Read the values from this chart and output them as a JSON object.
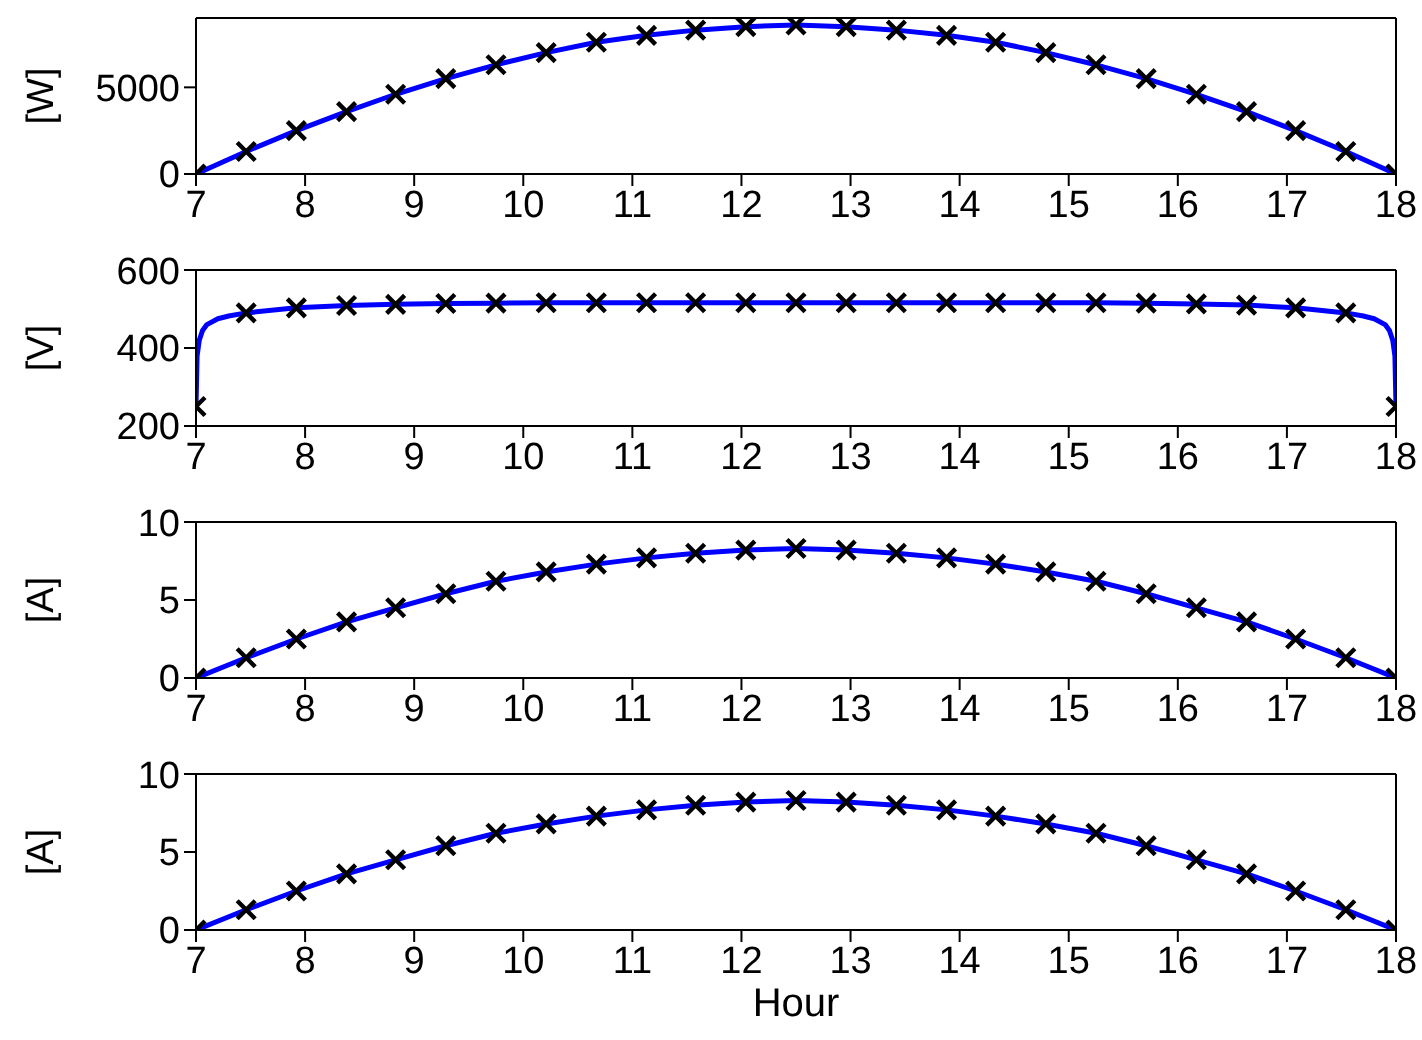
{
  "chart_data": [
    {
      "type": "line",
      "ylabel": "[W]",
      "x": [
        7,
        7.46,
        7.92,
        8.38,
        8.83,
        9.29,
        9.75,
        10.21,
        10.67,
        11.13,
        11.58,
        12.04,
        12.5,
        12.96,
        13.42,
        13.88,
        14.33,
        14.79,
        15.25,
        15.71,
        16.17,
        16.63,
        17.08,
        17.54,
        18
      ],
      "xlim": [
        7,
        18
      ],
      "xticks": [
        7,
        8,
        9,
        10,
        11,
        12,
        13,
        14,
        15,
        16,
        17,
        18
      ],
      "ylim": [
        0,
        9000
      ],
      "yticks": [
        0,
        5000
      ],
      "series": [
        {
          "color": "#0000ff",
          "marker": "none",
          "values": [
            0,
            1300,
            2500,
            3600,
            4600,
            5500,
            6300,
            7000,
            7600,
            8000,
            8300,
            8500,
            8600,
            8500,
            8300,
            8000,
            7600,
            7000,
            6300,
            5500,
            4600,
            3600,
            2500,
            1300,
            0
          ]
        },
        {
          "type": "scatter",
          "color": "#000000",
          "marker": "cross",
          "values": [
            0,
            1300,
            2500,
            3600,
            4600,
            5500,
            6300,
            7000,
            7600,
            8000,
            8300,
            8500,
            8600,
            8500,
            8300,
            8000,
            7600,
            7000,
            6300,
            5500,
            4600,
            3600,
            2500,
            1300,
            0
          ]
        }
      ]
    },
    {
      "type": "line",
      "ylabel": "[V]",
      "x": [
        7,
        7.46,
        7.92,
        8.38,
        8.83,
        9.29,
        9.75,
        10.21,
        10.67,
        11.13,
        11.58,
        12.04,
        12.5,
        12.96,
        13.42,
        13.88,
        14.33,
        14.79,
        15.25,
        15.71,
        16.17,
        16.63,
        17.08,
        17.54,
        18
      ],
      "xlim": [
        7,
        18
      ],
      "xticks": [
        7,
        8,
        9,
        10,
        11,
        12,
        13,
        14,
        15,
        16,
        17,
        18
      ],
      "ylim": [
        200,
        600
      ],
      "yticks": [
        200,
        400,
        600
      ],
      "series": [
        {
          "color": "#0000ff",
          "marker": "none",
          "x": [
            7,
            7.01,
            7.03,
            7.06,
            7.1,
            7.2,
            7.3,
            7.46,
            7.92,
            8.38,
            8.83,
            9.29,
            9.75,
            10.21,
            10.67,
            11.13,
            11.58,
            12.04,
            12.5,
            12.96,
            13.42,
            13.88,
            14.33,
            14.79,
            15.25,
            15.71,
            16.17,
            16.63,
            17.08,
            17.54,
            17.7,
            17.8,
            17.9,
            17.94,
            17.97,
            17.99,
            18
          ],
          "values": [
            250,
            380,
            420,
            445,
            460,
            475,
            482,
            490,
            503,
            509,
            512,
            514,
            515,
            516,
            516,
            516,
            516,
            516,
            516,
            516,
            516,
            516,
            516,
            516,
            516,
            515,
            513,
            510,
            503,
            490,
            482,
            475,
            460,
            445,
            420,
            380,
            250
          ]
        },
        {
          "type": "scatter",
          "color": "#000000",
          "marker": "cross",
          "values": [
            250,
            490,
            503,
            509,
            512,
            514,
            515,
            516,
            516,
            516,
            516,
            516,
            516,
            516,
            516,
            516,
            516,
            516,
            516,
            515,
            513,
            510,
            503,
            490,
            250
          ]
        }
      ]
    },
    {
      "type": "line",
      "ylabel": "[A]",
      "x": [
        7,
        7.46,
        7.92,
        8.38,
        8.83,
        9.29,
        9.75,
        10.21,
        10.67,
        11.13,
        11.58,
        12.04,
        12.5,
        12.96,
        13.42,
        13.88,
        14.33,
        14.79,
        15.25,
        15.71,
        16.17,
        16.63,
        17.08,
        17.54,
        18
      ],
      "xlim": [
        7,
        18
      ],
      "xticks": [
        7,
        8,
        9,
        10,
        11,
        12,
        13,
        14,
        15,
        16,
        17,
        18
      ],
      "ylim": [
        0,
        10
      ],
      "yticks": [
        0,
        5,
        10
      ],
      "series": [
        {
          "color": "#0000ff",
          "marker": "none",
          "values": [
            0,
            1.3,
            2.5,
            3.6,
            4.5,
            5.4,
            6.2,
            6.8,
            7.3,
            7.7,
            8.0,
            8.2,
            8.3,
            8.2,
            8.0,
            7.7,
            7.3,
            6.8,
            6.2,
            5.4,
            4.5,
            3.6,
            2.5,
            1.3,
            0
          ]
        },
        {
          "type": "scatter",
          "color": "#000000",
          "marker": "cross",
          "values": [
            0,
            1.3,
            2.5,
            3.6,
            4.5,
            5.4,
            6.2,
            6.8,
            7.3,
            7.7,
            8.0,
            8.2,
            8.3,
            8.2,
            8.0,
            7.7,
            7.3,
            6.8,
            6.2,
            5.4,
            4.5,
            3.6,
            2.5,
            1.3,
            0
          ]
        }
      ]
    },
    {
      "type": "line",
      "ylabel": "[A]",
      "xlabel": "Hour",
      "x": [
        7,
        7.46,
        7.92,
        8.38,
        8.83,
        9.29,
        9.75,
        10.21,
        10.67,
        11.13,
        11.58,
        12.04,
        12.5,
        12.96,
        13.42,
        13.88,
        14.33,
        14.79,
        15.25,
        15.71,
        16.17,
        16.63,
        17.08,
        17.54,
        18
      ],
      "xlim": [
        7,
        18
      ],
      "xticks": [
        7,
        8,
        9,
        10,
        11,
        12,
        13,
        14,
        15,
        16,
        17,
        18
      ],
      "ylim": [
        0,
        10
      ],
      "yticks": [
        0,
        5,
        10
      ],
      "series": [
        {
          "color": "#0000ff",
          "marker": "none",
          "values": [
            0,
            1.3,
            2.5,
            3.6,
            4.5,
            5.4,
            6.2,
            6.8,
            7.3,
            7.7,
            8.0,
            8.2,
            8.3,
            8.2,
            8.0,
            7.7,
            7.3,
            6.8,
            6.2,
            5.4,
            4.5,
            3.6,
            2.5,
            1.3,
            0
          ]
        },
        {
          "type": "scatter",
          "color": "#000000",
          "marker": "cross",
          "values": [
            0,
            1.3,
            2.5,
            3.6,
            4.5,
            5.4,
            6.2,
            6.8,
            7.3,
            7.7,
            8.0,
            8.2,
            8.3,
            8.2,
            8.0,
            7.7,
            7.3,
            6.8,
            6.2,
            5.4,
            4.5,
            3.6,
            2.5,
            1.3,
            0
          ]
        }
      ]
    }
  ]
}
